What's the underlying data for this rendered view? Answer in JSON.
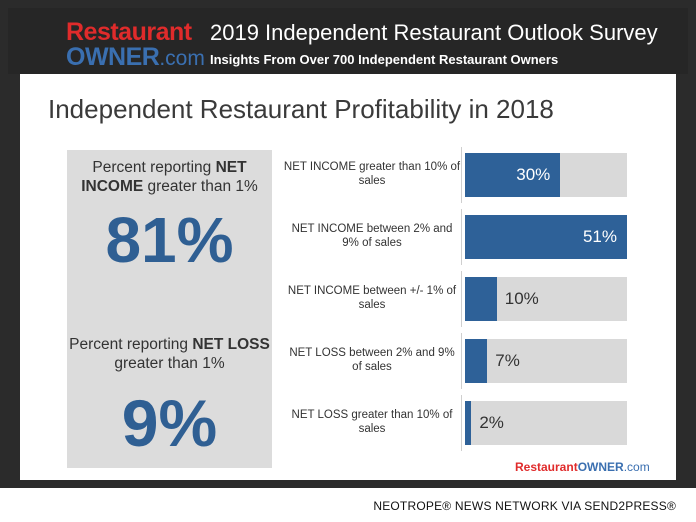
{
  "header": {
    "logo_line1": "Restaurant",
    "logo_owner": "OWNER",
    "logo_com": ".com",
    "title": "2019 Independent Restaurant Outlook Survey",
    "subtitle": "Insights From Over 700 Independent Restaurant Owners"
  },
  "colors": {
    "accent": "#2e6198",
    "track": "#d9d9d9",
    "brand_red": "#e02b2b",
    "brand_blue": "#3a6fb0"
  },
  "main_title": "Independent Restaurant Profitability in 2018",
  "stats": {
    "net_income": {
      "pre": "Percent reporting ",
      "bold": "NET INCOME",
      "post": " greater than 1%",
      "value": "81%"
    },
    "net_loss": {
      "pre": "Percent reporting ",
      "bold": "NET LOSS",
      "post": " greater than 1%",
      "value": "9%"
    }
  },
  "chart_data": {
    "type": "bar",
    "orientation": "horizontal",
    "categories": [
      "NET INCOME greater than 10% of sales",
      "NET INCOME between 2% and 9% of sales",
      "NET INCOME between +/- 1% of sales",
      "NET LOSS between 2% and 9% of sales",
      "NET LOSS greater than 10% of sales"
    ],
    "values": [
      30,
      51,
      10,
      7,
      2
    ],
    "labels": [
      "30%",
      "51%",
      "10%",
      "7%",
      "2%"
    ],
    "xlim": [
      0,
      51
    ],
    "grid": false
  },
  "footer": {
    "logo_r": "Restaurant",
    "logo_o": "OWNER",
    "logo_c": ".com"
  },
  "credit": "NEOTROPE® NEWS NETWORK VIA SEND2PRESS®"
}
